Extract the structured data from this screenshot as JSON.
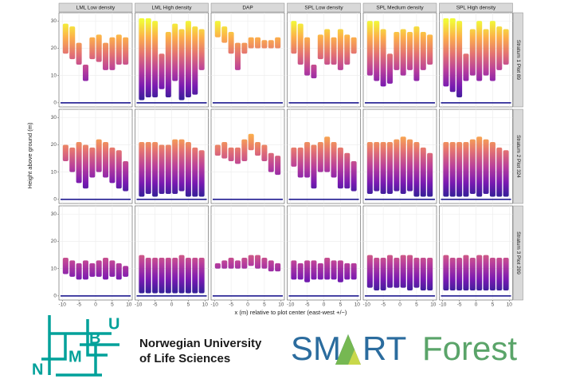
{
  "chart_data": {
    "type": "facet-range",
    "y_label": "Height above ground (m)",
    "x_label": "x (m) relative to plot center (east-west +/−)",
    "columns": [
      "LML Low density",
      "LML High density",
      "DAP",
      "SPL Low density",
      "SPL Medium density",
      "SPL High density"
    ],
    "rows": [
      "Stratum 1 Plot 89",
      "Stratum 2 Plot 324",
      "Stratum 3 Plot 209"
    ],
    "xlim": [
      -11,
      11
    ],
    "xticks": [
      -10,
      -5,
      0,
      5,
      10
    ],
    "ylim": [
      -1.5,
      33
    ],
    "yticks": [
      0,
      10,
      20,
      30
    ],
    "grid": true,
    "colormap": [
      "#0d0887",
      "#6a00a8",
      "#b12a90",
      "#e16462",
      "#fca636",
      "#f0f921"
    ],
    "x": [
      -9,
      -7,
      -5,
      -3,
      -1,
      1,
      3,
      5,
      7,
      9
    ],
    "panels": [
      [
        {
          "top": [
            29,
            28,
            22,
            14,
            24,
            25,
            22,
            24,
            25,
            24
          ],
          "bottom": [
            18,
            16,
            14,
            8,
            16,
            15,
            12,
            12,
            14,
            14
          ]
        },
        {
          "top": [
            31,
            31,
            30,
            18,
            26,
            29,
            27,
            30,
            28,
            27
          ],
          "bottom": [
            1,
            2,
            2,
            5,
            2,
            8,
            1,
            2,
            3,
            12
          ]
        },
        {
          "top": [
            30,
            28,
            26,
            22,
            22,
            24,
            24,
            23,
            23,
            24
          ],
          "bottom": [
            24,
            22,
            18,
            12,
            18,
            20,
            20,
            20,
            20,
            20
          ]
        },
        {
          "top": [
            30,
            29,
            24,
            14,
            25,
            27,
            24,
            27,
            25,
            24
          ],
          "bottom": [
            18,
            14,
            10,
            9,
            16,
            14,
            14,
            12,
            14,
            18
          ]
        },
        {
          "top": [
            30,
            30,
            27,
            18,
            26,
            27,
            26,
            28,
            26,
            25
          ],
          "bottom": [
            10,
            8,
            6,
            7,
            12,
            10,
            12,
            8,
            12,
            14
          ]
        },
        {
          "top": [
            31,
            31,
            30,
            18,
            27,
            30,
            27,
            30,
            28,
            27
          ],
          "bottom": [
            6,
            4,
            2,
            8,
            10,
            8,
            10,
            8,
            12,
            14
          ]
        }
      ],
      [
        {
          "top": [
            20,
            19,
            21,
            20,
            19,
            22,
            21,
            19,
            18,
            14
          ],
          "bottom": [
            14,
            10,
            6,
            4,
            8,
            10,
            8,
            6,
            4,
            3
          ]
        },
        {
          "top": [
            21,
            21,
            21,
            20,
            20,
            22,
            22,
            21,
            19,
            18
          ],
          "bottom": [
            1,
            2,
            1,
            2,
            2,
            2,
            3,
            1,
            1,
            1
          ]
        },
        {
          "top": [
            20,
            21,
            19,
            19,
            22,
            24,
            21,
            20,
            17,
            16
          ],
          "bottom": [
            16,
            15,
            14,
            13,
            14,
            18,
            16,
            14,
            10,
            9
          ]
        },
        {
          "top": [
            19,
            19,
            21,
            20,
            21,
            23,
            21,
            19,
            17,
            14
          ],
          "bottom": [
            12,
            8,
            8,
            4,
            10,
            10,
            8,
            4,
            4,
            3
          ]
        },
        {
          "top": [
            21,
            21,
            21,
            21,
            22,
            23,
            22,
            21,
            19,
            17
          ],
          "bottom": [
            2,
            3,
            2,
            2,
            3,
            2,
            3,
            1,
            1,
            1
          ]
        },
        {
          "top": [
            21,
            21,
            21,
            21,
            22,
            23,
            22,
            21,
            19,
            18
          ],
          "bottom": [
            1,
            1,
            1,
            1,
            2,
            1,
            2,
            1,
            1,
            1
          ]
        }
      ],
      [
        {
          "top": [
            14,
            13,
            12,
            13,
            12,
            13,
            14,
            13,
            12,
            11
          ],
          "bottom": [
            8,
            7,
            6,
            6,
            7,
            7,
            6,
            7,
            6,
            7
          ]
        },
        {
          "top": [
            15,
            14,
            14,
            14,
            14,
            14,
            15,
            14,
            14,
            14
          ],
          "bottom": [
            1,
            1,
            1,
            1,
            1,
            1,
            1,
            1,
            1,
            1
          ]
        },
        {
          "top": [
            12,
            13,
            14,
            13,
            14,
            15,
            15,
            14,
            13,
            12
          ],
          "bottom": [
            10,
            10,
            10,
            10,
            10,
            11,
            10,
            10,
            9,
            9
          ]
        },
        {
          "top": [
            13,
            12,
            13,
            13,
            12,
            14,
            13,
            13,
            12,
            12
          ],
          "bottom": [
            6,
            6,
            5,
            6,
            6,
            6,
            6,
            5,
            6,
            6
          ]
        },
        {
          "top": [
            15,
            14,
            14,
            15,
            14,
            15,
            15,
            14,
            14,
            14
          ],
          "bottom": [
            3,
            2,
            2,
            3,
            3,
            3,
            2,
            3,
            2,
            2
          ]
        },
        {
          "top": [
            15,
            14,
            14,
            15,
            14,
            15,
            15,
            14,
            14,
            14
          ],
          "bottom": [
            2,
            2,
            2,
            2,
            2,
            2,
            2,
            2,
            2,
            2
          ]
        }
      ]
    ]
  },
  "logos": {
    "nmbu_letters": [
      "N",
      "M",
      "B",
      "U"
    ],
    "nmbu_name": [
      "Norwegian University",
      "of Life Sciences"
    ],
    "smartforest": [
      "SM",
      "RT",
      "Forest"
    ]
  }
}
